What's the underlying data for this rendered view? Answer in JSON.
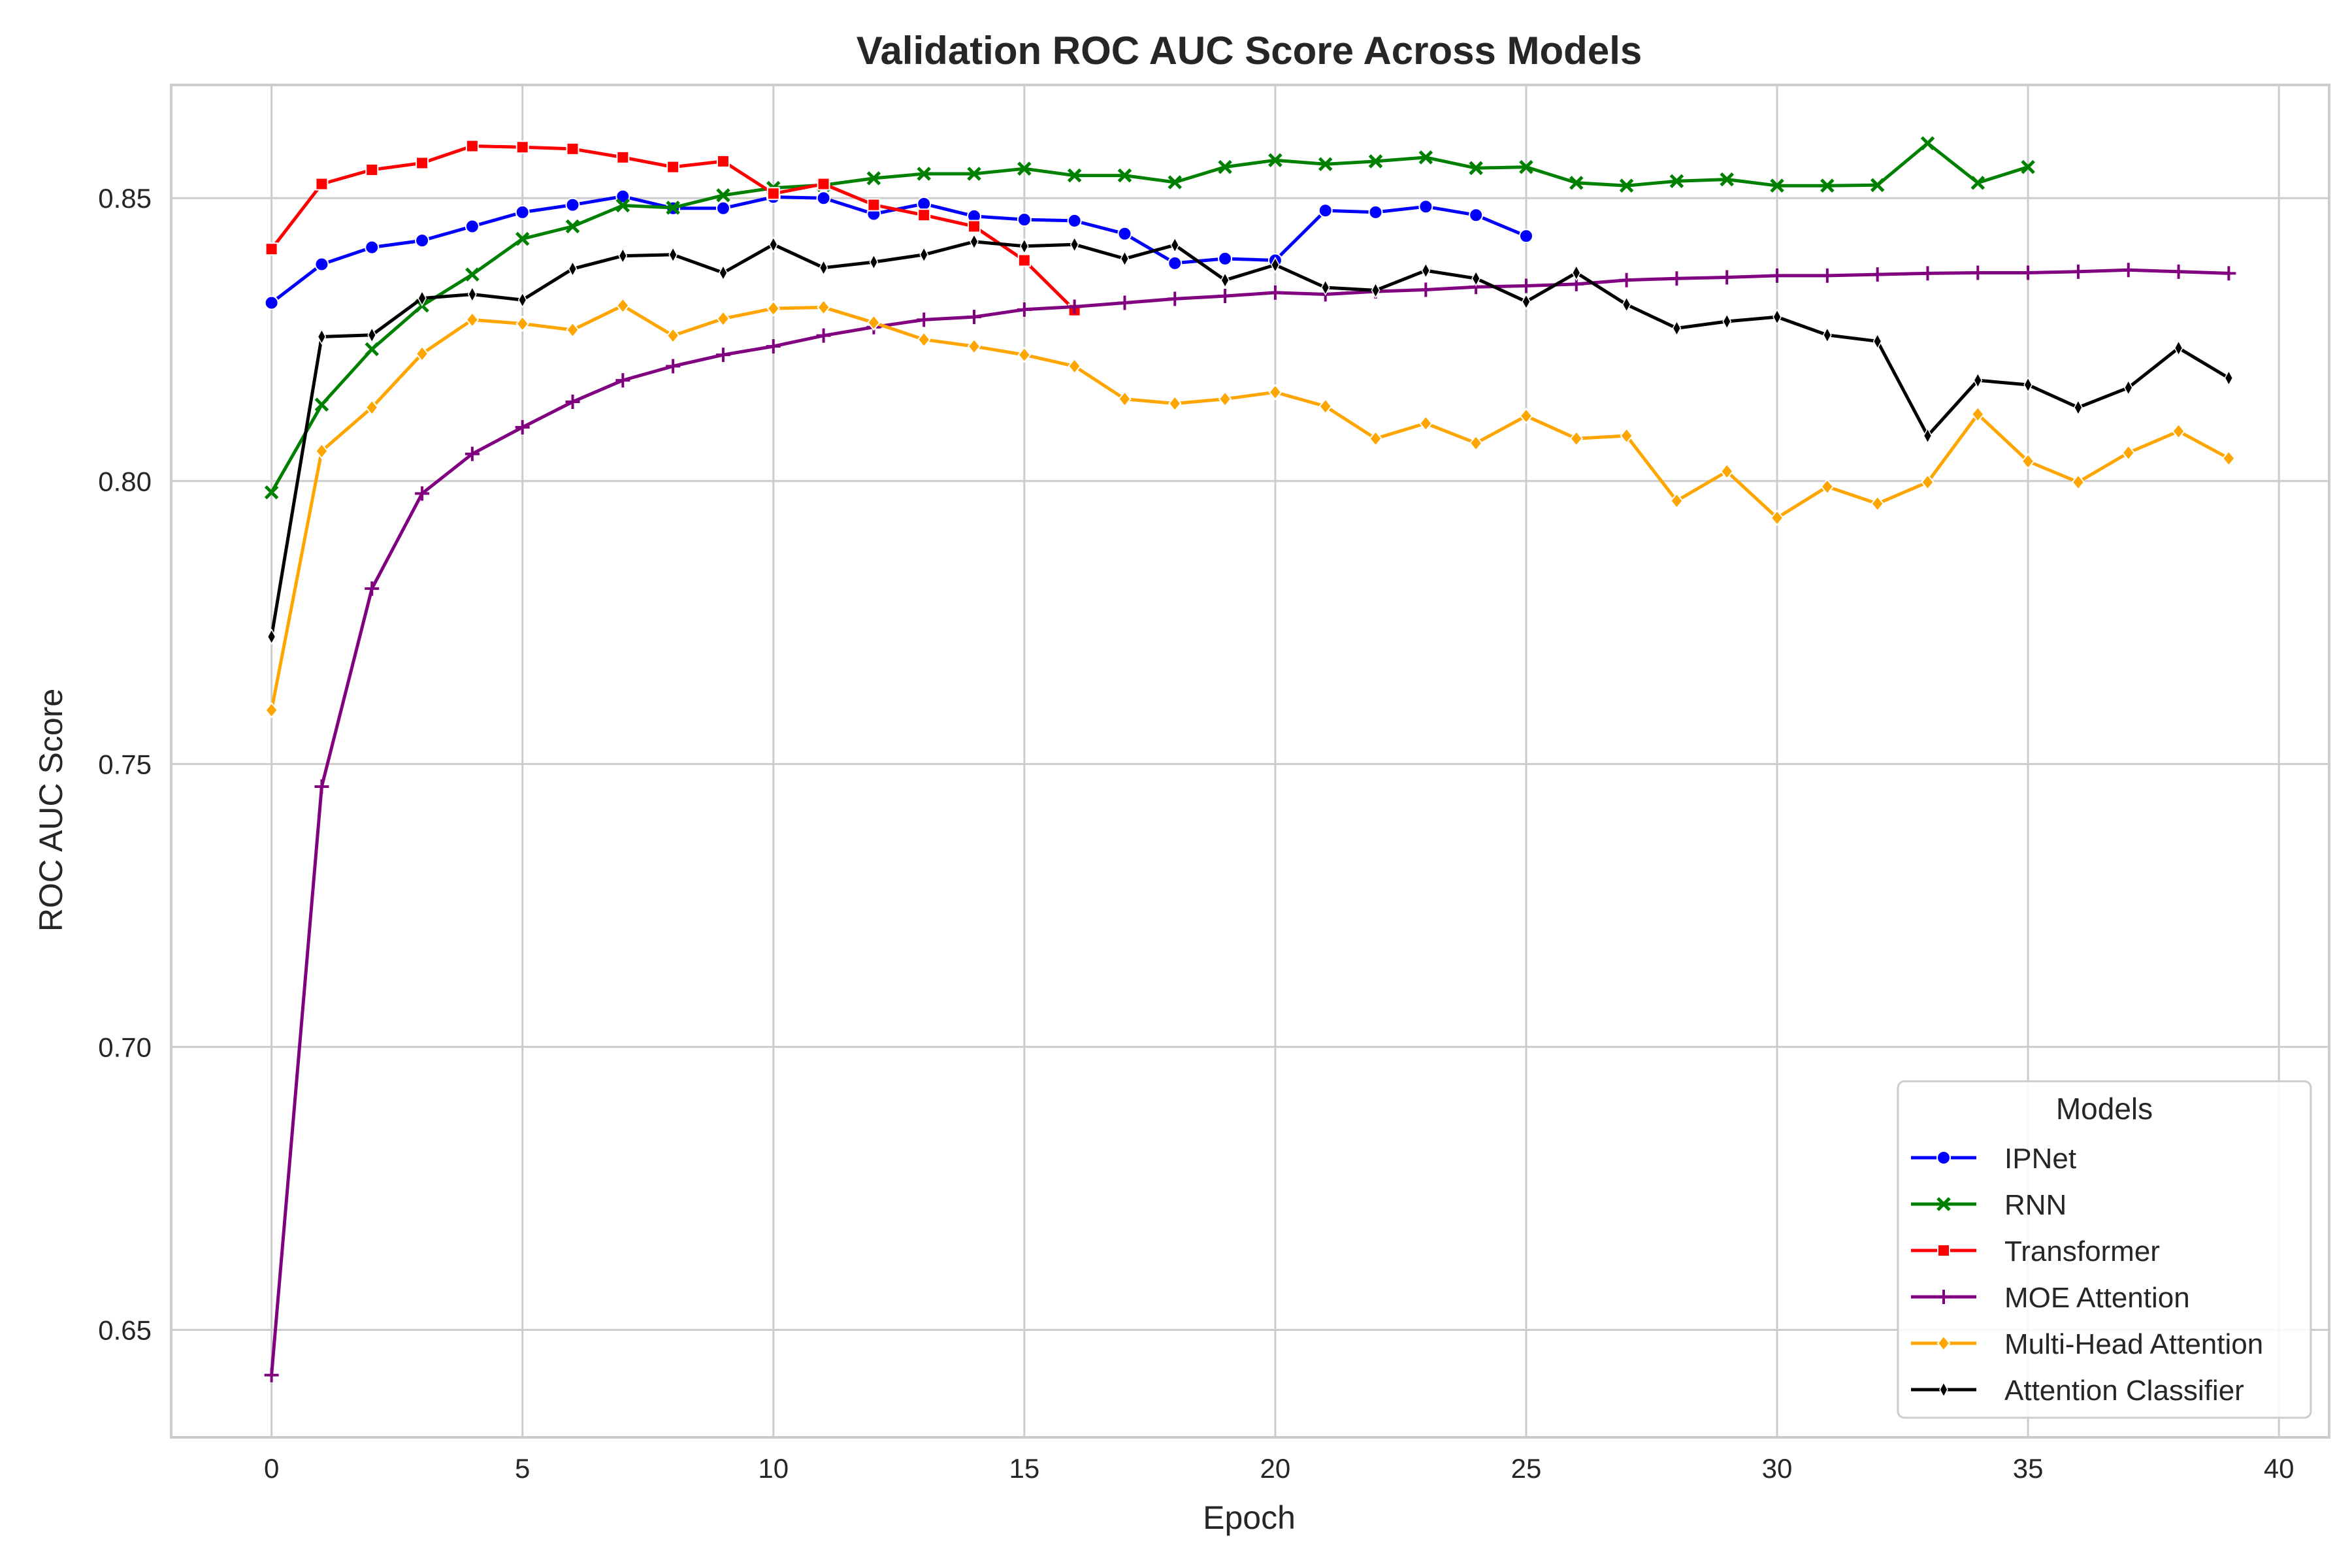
{
  "chart_data": {
    "type": "line",
    "title": "Validation ROC AUC Score Across Models",
    "xlabel": "Epoch",
    "ylabel": "ROC AUC Score",
    "xlim": [
      -2,
      41
    ],
    "ylim": [
      0.631,
      0.87
    ],
    "xticks": [
      0,
      5,
      10,
      15,
      20,
      25,
      30,
      35,
      40
    ],
    "yticks": [
      0.65,
      0.7,
      0.75,
      0.8,
      0.85
    ],
    "ytick_labels": [
      "0.65",
      "0.70",
      "0.75",
      "0.80",
      "0.85"
    ],
    "grid": true,
    "legend": {
      "title": "Models",
      "position": "lower-right"
    },
    "series": [
      {
        "name": "IPNet",
        "color": "#0000ff",
        "marker": "circle",
        "x": [
          0,
          1,
          2,
          3,
          4,
          5,
          6,
          7,
          8,
          9,
          10,
          11,
          12,
          13,
          14,
          15,
          16,
          17,
          18,
          19,
          20,
          21,
          22,
          23,
          24,
          25
        ],
        "values": [
          0.8315,
          0.8383,
          0.8413,
          0.8425,
          0.845,
          0.8475,
          0.8488,
          0.8503,
          0.8482,
          0.8482,
          0.8502,
          0.85,
          0.8472,
          0.849,
          0.8468,
          0.8462,
          0.846,
          0.8437,
          0.8385,
          0.8393,
          0.839,
          0.8478,
          0.8475,
          0.8485,
          0.847,
          0.8433
        ]
      },
      {
        "name": "RNN",
        "color": "#008000",
        "marker": "x",
        "x": [
          0,
          1,
          2,
          3,
          4,
          5,
          6,
          7,
          8,
          9,
          10,
          11,
          12,
          13,
          14,
          15,
          16,
          17,
          18,
          19,
          20,
          21,
          22,
          23,
          24,
          25,
          26,
          27,
          28,
          29,
          30,
          31,
          32,
          33,
          34,
          35
        ],
        "values": [
          0.798,
          0.8135,
          0.8233,
          0.831,
          0.8365,
          0.8428,
          0.845,
          0.8487,
          0.8483,
          0.8505,
          0.8518,
          0.8523,
          0.8535,
          0.8543,
          0.8543,
          0.8552,
          0.854,
          0.854,
          0.8528,
          0.8555,
          0.8567,
          0.856,
          0.8565,
          0.8572,
          0.8553,
          0.8555,
          0.8527,
          0.8522,
          0.853,
          0.8533,
          0.8522,
          0.8522,
          0.8523,
          0.8597,
          0.8527,
          0.8555
        ]
      },
      {
        "name": "Transformer",
        "color": "#ff0000",
        "marker": "square",
        "x": [
          0,
          1,
          2,
          3,
          4,
          5,
          6,
          7,
          8,
          9,
          10,
          11,
          12,
          13,
          14,
          15,
          16
        ],
        "values": [
          0.841,
          0.8525,
          0.855,
          0.8562,
          0.8592,
          0.859,
          0.8587,
          0.8572,
          0.8555,
          0.8565,
          0.8508,
          0.8525,
          0.8488,
          0.847,
          0.845,
          0.839,
          0.8302
        ]
      },
      {
        "name": "MOE Attention",
        "color": "#800080",
        "marker": "plus",
        "x": [
          0,
          1,
          2,
          3,
          4,
          5,
          6,
          7,
          8,
          9,
          10,
          11,
          12,
          13,
          14,
          15,
          16,
          17,
          18,
          19,
          20,
          21,
          22,
          23,
          24,
          25,
          26,
          27,
          28,
          29,
          30,
          31,
          32,
          33,
          34,
          35,
          36,
          37,
          38,
          39
        ],
        "values": [
          0.642,
          0.746,
          0.781,
          0.7978,
          0.8048,
          0.8095,
          0.814,
          0.8178,
          0.8203,
          0.8223,
          0.8238,
          0.8257,
          0.8272,
          0.8285,
          0.829,
          0.8303,
          0.8308,
          0.8315,
          0.8322,
          0.8327,
          0.8333,
          0.833,
          0.8335,
          0.8338,
          0.8343,
          0.8345,
          0.8348,
          0.8355,
          0.8358,
          0.836,
          0.8363,
          0.8363,
          0.8365,
          0.8367,
          0.8368,
          0.8368,
          0.837,
          0.8373,
          0.837,
          0.8367
        ]
      },
      {
        "name": "Multi-Head Attention",
        "color": "#ffa500",
        "marker": "diamond",
        "x": [
          0,
          1,
          2,
          3,
          4,
          5,
          6,
          7,
          8,
          9,
          10,
          11,
          12,
          13,
          14,
          15,
          16,
          17,
          18,
          19,
          20,
          21,
          22,
          23,
          24,
          25,
          26,
          27,
          28,
          29,
          30,
          31,
          32,
          33,
          34,
          35,
          36,
          37,
          38,
          39
        ],
        "values": [
          0.7595,
          0.8053,
          0.813,
          0.8225,
          0.8285,
          0.8278,
          0.8267,
          0.831,
          0.8257,
          0.8287,
          0.8305,
          0.8307,
          0.828,
          0.825,
          0.8238,
          0.8223,
          0.8203,
          0.8145,
          0.8137,
          0.8145,
          0.8157,
          0.8132,
          0.8075,
          0.8102,
          0.8067,
          0.8115,
          0.8075,
          0.808,
          0.7965,
          0.8017,
          0.7935,
          0.799,
          0.796,
          0.7998,
          0.8118,
          0.8035,
          0.7998,
          0.805,
          0.8088,
          0.804
        ]
      },
      {
        "name": "Attention Classifier",
        "color": "#000000",
        "marker": "thin-diamond",
        "x": [
          0,
          1,
          2,
          3,
          4,
          5,
          6,
          7,
          8,
          9,
          10,
          11,
          12,
          13,
          14,
          15,
          16,
          17,
          18,
          19,
          20,
          21,
          22,
          23,
          24,
          25,
          26,
          27,
          28,
          29,
          30,
          31,
          32,
          33,
          34,
          35,
          36,
          37,
          38,
          39
        ],
        "values": [
          0.7725,
          0.8255,
          0.8258,
          0.8323,
          0.833,
          0.832,
          0.8375,
          0.8398,
          0.84,
          0.8368,
          0.8418,
          0.8377,
          0.8387,
          0.84,
          0.8423,
          0.8415,
          0.8418,
          0.8393,
          0.8417,
          0.8355,
          0.8382,
          0.8342,
          0.8337,
          0.8372,
          0.8358,
          0.8317,
          0.8368,
          0.8312,
          0.827,
          0.8282,
          0.829,
          0.8258,
          0.8247,
          0.808,
          0.8178,
          0.817,
          0.813,
          0.8165,
          0.8235,
          0.8182
        ]
      }
    ]
  }
}
